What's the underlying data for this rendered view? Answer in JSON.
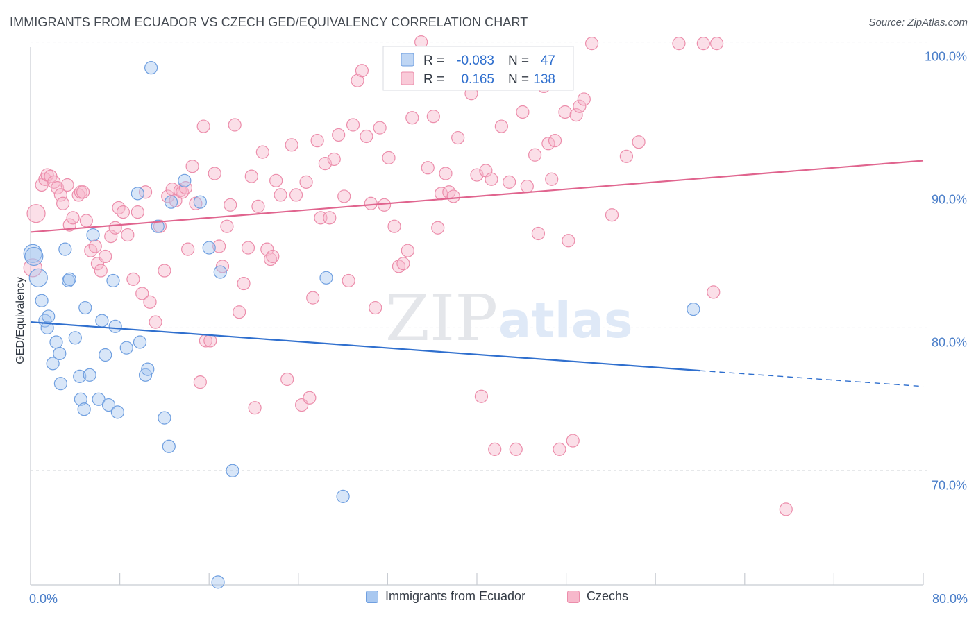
{
  "title": "IMMIGRANTS FROM ECUADOR VS CZECH GED/EQUIVALENCY CORRELATION CHART",
  "source": "Source: ZipAtlas.com",
  "watermark": {
    "zip": "ZIP",
    "atlas": "atlas"
  },
  "colors": {
    "ecuador_fill": "#a9c8f0",
    "ecuador_stroke": "#6f9fe0",
    "ecuador_line": "#2f6fce",
    "czech_fill": "#f7b8cb",
    "czech_stroke": "#ec8dab",
    "czech_line": "#e0648e",
    "tick_label": "#4a7ec9",
    "grid": "#dde0e4"
  },
  "legend": {
    "rows": [
      {
        "r_label": "R =",
        "r_value": "-0.083",
        "n_label": "N =",
        "n_value": "47"
      },
      {
        "r_label": "R =",
        "r_value": "0.165",
        "n_label": "N =",
        "n_value": "138"
      }
    ]
  },
  "chart_data": {
    "type": "scatter",
    "xlabel": "",
    "ylabel": "GED/Equivalency",
    "xlim": [
      0,
      80
    ],
    "ylim": [
      62,
      101
    ],
    "x_tick_labels": [
      {
        "value": 0,
        "label": "0.0%"
      },
      {
        "value": 80,
        "label": "80.0%"
      }
    ],
    "y_tick_labels": [
      {
        "value": 100,
        "label": "100.0%"
      },
      {
        "value": 90,
        "label": "90.0%"
      },
      {
        "value": 80,
        "label": "80.0%"
      },
      {
        "value": 70,
        "label": "70.0%"
      }
    ],
    "legend_placement": "bottom",
    "grid": true,
    "series": [
      {
        "name": "Immigrants from Ecuador",
        "trend": {
          "x0": 0,
          "y0": 80.4,
          "x1": 60,
          "y1": 77.0,
          "x_dashed_end": 80,
          "y_dashed_end": 75.9
        },
        "points": [
          [
            0.2,
            85.2
          ],
          [
            0.3,
            85.0
          ],
          [
            0.7,
            83.5
          ],
          [
            1.0,
            81.9
          ],
          [
            1.3,
            80.5
          ],
          [
            1.5,
            80.0
          ],
          [
            1.6,
            80.8
          ],
          [
            2.0,
            77.5
          ],
          [
            2.3,
            79.0
          ],
          [
            2.6,
            78.2
          ],
          [
            2.7,
            76.1
          ],
          [
            3.1,
            85.5
          ],
          [
            3.4,
            83.3
          ],
          [
            3.5,
            83.4
          ],
          [
            4.0,
            79.3
          ],
          [
            4.4,
            76.6
          ],
          [
            4.5,
            75.0
          ],
          [
            4.8,
            74.3
          ],
          [
            4.9,
            81.4
          ],
          [
            5.3,
            76.7
          ],
          [
            5.6,
            86.5
          ],
          [
            6.1,
            75.0
          ],
          [
            6.4,
            80.5
          ],
          [
            6.7,
            78.1
          ],
          [
            7.0,
            74.6
          ],
          [
            7.4,
            83.3
          ],
          [
            7.6,
            80.1
          ],
          [
            7.8,
            74.1
          ],
          [
            8.6,
            78.6
          ],
          [
            9.6,
            89.4
          ],
          [
            9.8,
            79.0
          ],
          [
            10.3,
            76.7
          ],
          [
            10.5,
            77.1
          ],
          [
            10.8,
            98.2
          ],
          [
            11.4,
            87.1
          ],
          [
            12.0,
            73.7
          ],
          [
            12.4,
            71.7
          ],
          [
            12.6,
            88.8
          ],
          [
            13.8,
            90.3
          ],
          [
            15.2,
            88.8
          ],
          [
            16.0,
            85.6
          ],
          [
            16.8,
            62.2
          ],
          [
            17.0,
            83.9
          ],
          [
            18.1,
            70.0
          ],
          [
            26.5,
            83.5
          ],
          [
            28.0,
            68.2
          ],
          [
            59.4,
            81.3
          ]
        ]
      },
      {
        "name": "Czechs",
        "trend": {
          "x0": 0,
          "y0": 86.7,
          "x1": 80,
          "y1": 91.7
        },
        "points": [
          [
            0.2,
            84.2
          ],
          [
            0.5,
            88.0
          ],
          [
            1.0,
            90.0
          ],
          [
            1.3,
            90.4
          ],
          [
            1.5,
            90.7
          ],
          [
            1.8,
            90.6
          ],
          [
            2.1,
            90.2
          ],
          [
            2.4,
            89.8
          ],
          [
            2.7,
            89.3
          ],
          [
            2.9,
            88.7
          ],
          [
            3.3,
            90.0
          ],
          [
            3.5,
            87.2
          ],
          [
            3.8,
            87.7
          ],
          [
            4.3,
            89.3
          ],
          [
            4.5,
            89.5
          ],
          [
            4.7,
            89.5
          ],
          [
            5.0,
            87.5
          ],
          [
            5.4,
            85.4
          ],
          [
            5.8,
            85.7
          ],
          [
            6.0,
            84.5
          ],
          [
            6.3,
            84.0
          ],
          [
            6.7,
            85.0
          ],
          [
            7.2,
            86.4
          ],
          [
            7.6,
            87.0
          ],
          [
            7.9,
            88.4
          ],
          [
            8.3,
            88.1
          ],
          [
            8.7,
            86.5
          ],
          [
            9.2,
            83.4
          ],
          [
            9.6,
            88.1
          ],
          [
            10.0,
            82.4
          ],
          [
            10.3,
            89.5
          ],
          [
            10.7,
            81.8
          ],
          [
            11.2,
            80.4
          ],
          [
            11.6,
            87.1
          ],
          [
            12.0,
            84.0
          ],
          [
            12.3,
            89.2
          ],
          [
            12.7,
            89.7
          ],
          [
            13.0,
            88.9
          ],
          [
            13.4,
            89.6
          ],
          [
            13.6,
            89.5
          ],
          [
            13.9,
            89.8
          ],
          [
            14.1,
            85.5
          ],
          [
            14.5,
            91.3
          ],
          [
            14.8,
            88.7
          ],
          [
            15.2,
            76.2
          ],
          [
            15.5,
            94.1
          ],
          [
            15.7,
            79.1
          ],
          [
            16.1,
            79.1
          ],
          [
            16.5,
            90.8
          ],
          [
            16.9,
            85.7
          ],
          [
            17.2,
            84.3
          ],
          [
            17.6,
            87.1
          ],
          [
            17.9,
            88.6
          ],
          [
            18.3,
            94.2
          ],
          [
            18.7,
            81.1
          ],
          [
            19.1,
            83.1
          ],
          [
            19.5,
            85.6
          ],
          [
            19.8,
            90.6
          ],
          [
            20.1,
            74.4
          ],
          [
            20.4,
            88.5
          ],
          [
            20.8,
            92.3
          ],
          [
            21.2,
            85.5
          ],
          [
            21.5,
            84.8
          ],
          [
            21.7,
            85.0
          ],
          [
            22.0,
            90.3
          ],
          [
            22.4,
            89.3
          ],
          [
            23.0,
            76.4
          ],
          [
            23.4,
            92.8
          ],
          [
            23.8,
            89.3
          ],
          [
            24.3,
            74.6
          ],
          [
            24.7,
            90.2
          ],
          [
            25.0,
            75.1
          ],
          [
            25.3,
            82.1
          ],
          [
            25.7,
            93.1
          ],
          [
            26.0,
            87.7
          ],
          [
            26.4,
            91.5
          ],
          [
            26.8,
            87.7
          ],
          [
            27.2,
            91.8
          ],
          [
            27.6,
            93.5
          ],
          [
            28.1,
            89.2
          ],
          [
            28.5,
            83.3
          ],
          [
            28.9,
            94.2
          ],
          [
            29.3,
            97.3
          ],
          [
            29.7,
            98.0
          ],
          [
            30.1,
            93.4
          ],
          [
            30.5,
            88.7
          ],
          [
            30.9,
            81.4
          ],
          [
            31.3,
            94.0
          ],
          [
            31.7,
            88.6
          ],
          [
            32.1,
            91.9
          ],
          [
            32.6,
            87.1
          ],
          [
            33.0,
            84.3
          ],
          [
            33.4,
            84.5
          ],
          [
            33.8,
            85.4
          ],
          [
            34.2,
            94.7
          ],
          [
            34.6,
            98.9
          ],
          [
            35.0,
            100.0
          ],
          [
            35.6,
            91.2
          ],
          [
            36.1,
            94.8
          ],
          [
            36.5,
            87.0
          ],
          [
            36.8,
            89.4
          ],
          [
            37.2,
            90.8
          ],
          [
            37.5,
            89.5
          ],
          [
            37.9,
            89.2
          ],
          [
            38.3,
            93.3
          ],
          [
            39.5,
            96.4
          ],
          [
            40.0,
            90.7
          ],
          [
            40.4,
            75.2
          ],
          [
            40.8,
            91.0
          ],
          [
            41.3,
            90.4
          ],
          [
            41.6,
            71.5
          ],
          [
            42.2,
            94.1
          ],
          [
            42.9,
            90.2
          ],
          [
            43.5,
            71.5
          ],
          [
            44.1,
            95.1
          ],
          [
            44.5,
            89.9
          ],
          [
            45.2,
            92.1
          ],
          [
            45.5,
            86.6
          ],
          [
            46.0,
            96.9
          ],
          [
            46.4,
            92.9
          ],
          [
            46.7,
            90.4
          ],
          [
            47.0,
            93.1
          ],
          [
            47.4,
            71.5
          ],
          [
            47.9,
            95.1
          ],
          [
            48.2,
            86.1
          ],
          [
            48.6,
            72.1
          ],
          [
            48.9,
            94.9
          ],
          [
            49.2,
            95.5
          ],
          [
            49.6,
            96.0
          ],
          [
            50.3,
            99.9
          ],
          [
            52.1,
            87.9
          ],
          [
            53.4,
            92.0
          ],
          [
            54.5,
            93.0
          ],
          [
            58.1,
            99.9
          ],
          [
            60.3,
            99.9
          ],
          [
            61.5,
            99.9
          ],
          [
            61.2,
            82.5
          ],
          [
            67.7,
            67.3
          ]
        ]
      }
    ]
  }
}
